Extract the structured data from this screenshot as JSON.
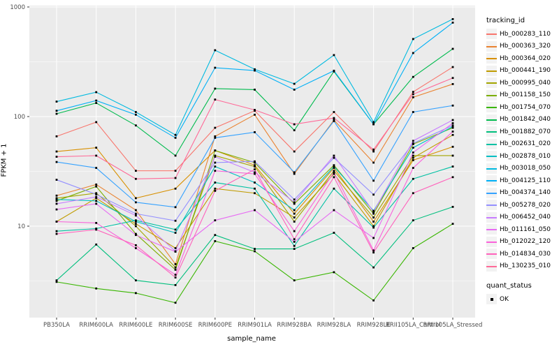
{
  "figure": {
    "panel_bg": "#EBEBEB",
    "grid_color": "#FFFFFF",
    "tick_color": "#333333",
    "tick_label_color": "#4D4D4D",
    "point_color": "#000000"
  },
  "axes": {
    "x_title": "sample_name",
    "y_title": "FPKM + 1"
  },
  "legend": {
    "tracking_title": "tracking_id",
    "quant_title": "quant_status",
    "quant_items": [
      {
        "label": "OK"
      }
    ]
  },
  "chart_data": {
    "type": "line",
    "title": "",
    "xlabel": "sample_name",
    "ylabel": "FPKM + 1",
    "y_scale": "log10",
    "ylim": [
      1.4,
      1100
    ],
    "y_major_ticks": [
      10,
      100,
      1000
    ],
    "y_minor_ticks": [
      3.1623,
      31.623,
      316.23
    ],
    "grid": true,
    "legend_position": "right",
    "point_marker": "small black square (quant_status = OK)",
    "categories": [
      "PB350LA",
      "RRIM600LA",
      "RRIM600LE",
      "RRIM600SE",
      "RRIM600PE",
      "RRIM901LA",
      "RRIM928BA",
      "RRIM928LA",
      "RRIM928LE",
      "RRII105LA_Control",
      "RRII105LA_Stressed"
    ],
    "series": [
      {
        "name": "Hb_000283_110",
        "color": "#F8766D",
        "values": [
          66,
          89,
          32,
          32,
          79,
          113,
          48,
          110,
          48,
          168,
          283
        ]
      },
      {
        "name": "Hb_000363_320",
        "color": "#EA8331",
        "values": [
          19,
          24,
          14,
          4.5,
          66,
          104,
          30,
          93,
          38,
          150,
          198
        ]
      },
      {
        "name": "Hb_000364_020",
        "color": "#D89000",
        "values": [
          48,
          52,
          18,
          22,
          49,
          36,
          13,
          34,
          11,
          40,
          53
        ]
      },
      {
        "name": "Hb_000441_190",
        "color": "#C09B00",
        "values": [
          11,
          18,
          10.5,
          6.3,
          22,
          20,
          12,
          30,
          10,
          42,
          68
        ]
      },
      {
        "name": "Hb_000995_040",
        "color": "#A3A500",
        "values": [
          18,
          20,
          10,
          4.2,
          44,
          35,
          11,
          32,
          12,
          44,
          44
        ]
      },
      {
        "name": "Hb_001158_150",
        "color": "#7CAE00",
        "values": [
          17,
          23,
          8.5,
          4.0,
          49,
          38,
          16,
          36,
          13,
          56,
          79
        ]
      },
      {
        "name": "Hb_001754_070",
        "color": "#39B600",
        "values": [
          3.1,
          2.7,
          2.45,
          2.0,
          7.3,
          5.9,
          3.2,
          3.8,
          2.1,
          6.3,
          10.5
        ]
      },
      {
        "name": "Hb_001842_040",
        "color": "#00BB4E",
        "values": [
          106,
          133,
          83,
          44,
          180,
          176,
          75,
          258,
          85,
          230,
          415
        ]
      },
      {
        "name": "Hb_001882_070",
        "color": "#00BF7D",
        "values": [
          3.2,
          6.8,
          3.2,
          2.9,
          8.3,
          6.2,
          6.2,
          8.7,
          4.2,
          11.3,
          15
        ]
      },
      {
        "name": "Hb_002631_020",
        "color": "#00C1A3",
        "values": [
          9,
          9.5,
          11.3,
          9.3,
          25,
          22,
          6.6,
          22,
          9.7,
          27,
          35
        ]
      },
      {
        "name": "Hb_002878_010",
        "color": "#00BFC4",
        "values": [
          17.5,
          17,
          11,
          8.7,
          35,
          25,
          14,
          35,
          13.8,
          52,
          81
        ]
      },
      {
        "name": "Hb_003018_050",
        "color": "#00BAE0",
        "values": [
          137,
          167,
          110,
          68,
          403,
          270,
          199,
          364,
          89,
          510,
          775
        ]
      },
      {
        "name": "Hb_004125_110",
        "color": "#00B0F6",
        "values": [
          113,
          140,
          104,
          64,
          279,
          263,
          176,
          262,
          85,
          380,
          720
        ]
      },
      {
        "name": "Hb_004374_140",
        "color": "#35A2FF",
        "values": [
          38.5,
          34,
          16.5,
          14.9,
          64,
          72,
          31,
          91,
          26,
          110,
          126
        ]
      },
      {
        "name": "Hb_005278_020",
        "color": "#9590FF",
        "values": [
          26.5,
          19.5,
          13,
          11.2,
          38,
          39,
          17.5,
          42,
          19.4,
          57,
          83
        ]
      },
      {
        "name": "Hb_006452_040",
        "color": "#C77CFF",
        "values": [
          16,
          18.5,
          12.5,
          5.9,
          43,
          31,
          16.5,
          44,
          13.5,
          60,
          93
        ]
      },
      {
        "name": "Hb_011161_050",
        "color": "#E76BF3",
        "values": [
          14.2,
          16,
          8.3,
          5.85,
          11.3,
          14,
          7.2,
          14,
          7.8,
          47,
          87
        ]
      },
      {
        "name": "Hb_012022_120",
        "color": "#FA62DB",
        "values": [
          11,
          10.7,
          6.3,
          3.6,
          32,
          30,
          9,
          31,
          6,
          34,
          73
        ]
      },
      {
        "name": "Hb_014834_030",
        "color": "#FF62BC",
        "values": [
          8.5,
          9.3,
          6.7,
          3.4,
          21,
          33,
          7.6,
          28,
          5.75,
          20,
          28
        ]
      },
      {
        "name": "Hb_130235_010",
        "color": "#FF6A98",
        "values": [
          43,
          44,
          27,
          27.5,
          143,
          115,
          85,
          97,
          50,
          160,
          225
        ]
      }
    ]
  }
}
